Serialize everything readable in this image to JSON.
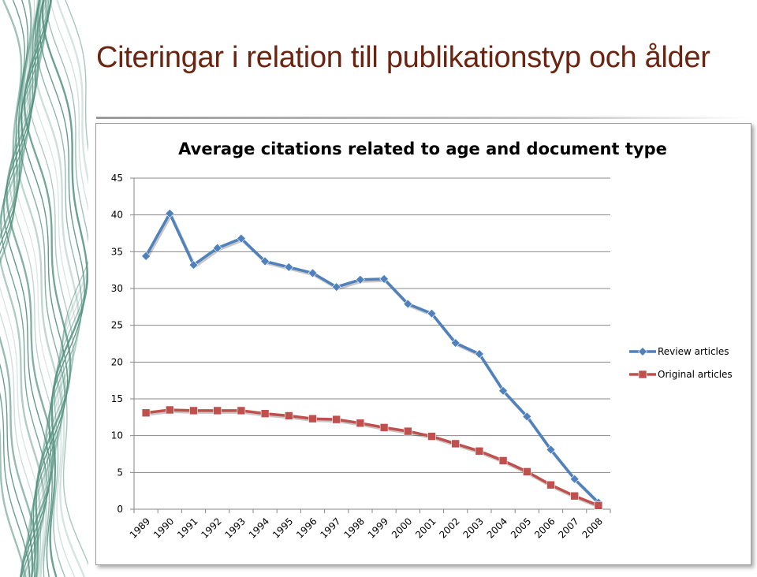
{
  "slide": {
    "title": "Citeringar i relation till publikationstyp och ålder"
  },
  "colors": {
    "title": "#6b2410",
    "decoration": "#4f8f7c",
    "review": "#4f81bd",
    "original": "#c0504d",
    "gridline": "#888888"
  },
  "chart_data": {
    "type": "line",
    "title": "Average citations related to age and document type",
    "xlabel": "",
    "ylabel": "",
    "categories": [
      "1989",
      "1990",
      "1991",
      "1992",
      "1993",
      "1994",
      "1995",
      "1996",
      "1997",
      "1998",
      "1999",
      "2000",
      "2001",
      "2002",
      "2003",
      "2004",
      "2005",
      "2006",
      "2007",
      "2008"
    ],
    "ylim": [
      0,
      45
    ],
    "yticks": [
      0,
      5,
      10,
      15,
      20,
      25,
      30,
      35,
      40,
      45
    ],
    "grid": true,
    "legend_position": "right",
    "series": [
      {
        "name": "Review articles",
        "marker": "diamond",
        "color": "#4f81bd",
        "values": [
          34.4,
          40.2,
          33.2,
          35.5,
          36.8,
          33.7,
          32.9,
          32.1,
          30.2,
          31.2,
          31.3,
          27.9,
          26.6,
          22.6,
          21.1,
          16.1,
          12.6,
          8.1,
          4.1,
          0.9
        ]
      },
      {
        "name": "Original articles",
        "marker": "square",
        "color": "#c0504d",
        "values": [
          13.1,
          13.5,
          13.4,
          13.4,
          13.4,
          13.0,
          12.7,
          12.3,
          12.2,
          11.7,
          11.1,
          10.6,
          9.9,
          8.9,
          7.9,
          6.6,
          5.1,
          3.3,
          1.8,
          0.5
        ]
      }
    ]
  }
}
